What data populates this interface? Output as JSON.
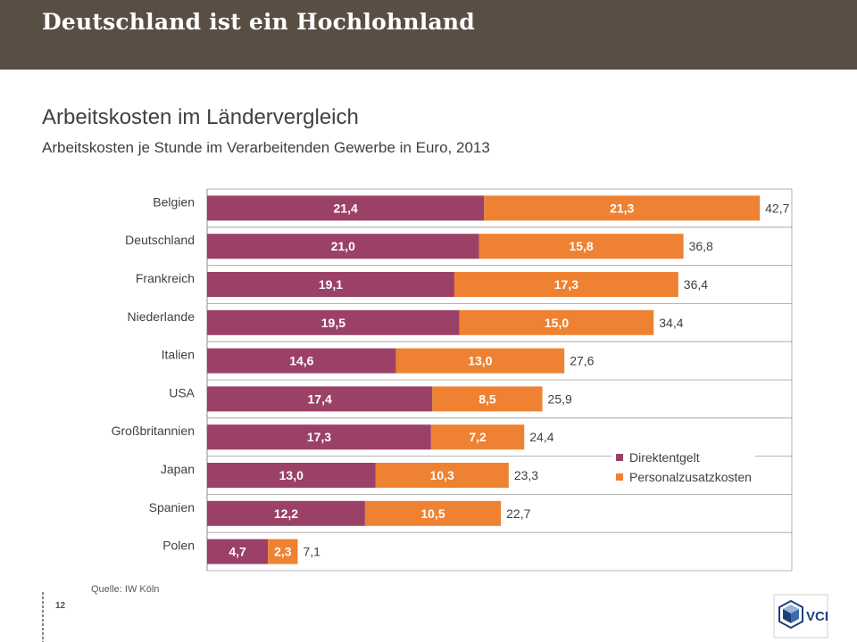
{
  "header": {
    "title": "Deutschland ist ein Hochlohnland"
  },
  "footer": {
    "source": "Quelle: IW Köln",
    "page_number": "12",
    "logo_text": "VCI"
  },
  "colors": {
    "header_bg": "#594e44",
    "direktentgelt": "#9b4168",
    "personalzusatzkosten": "#ee8232"
  },
  "chart_data": {
    "type": "bar",
    "orientation": "horizontal",
    "stacked": true,
    "title": "Arbeitskosten im Ländervergleich",
    "subtitle": "Arbeitskosten je Stunde im Verarbeitenden Gewerbe in Euro, 2013",
    "categories": [
      "Belgien",
      "Deutschland",
      "Frankreich",
      "Niederlande",
      "Italien",
      "USA",
      "Großbritannien",
      "Japan",
      "Spanien",
      "Polen"
    ],
    "series": [
      {
        "name": "Direktentgelt",
        "color": "#9b4168",
        "values": [
          21.4,
          21.0,
          19.1,
          19.5,
          14.6,
          17.4,
          17.3,
          13.0,
          12.2,
          4.7
        ],
        "labels": [
          "21,4",
          "21,0",
          "19,1",
          "19,5",
          "14,6",
          "17,4",
          "17,3",
          "13,0",
          "12,2",
          "4,7"
        ]
      },
      {
        "name": "Personalzusatzkosten",
        "color": "#ee8232",
        "values": [
          21.3,
          15.8,
          17.3,
          15.0,
          13.0,
          8.5,
          7.2,
          10.3,
          10.5,
          2.3
        ],
        "labels": [
          "21,3",
          "15,8",
          "17,3",
          "15,0",
          "13,0",
          "8,5",
          "7,2",
          "10,3",
          "10,5",
          "2,3"
        ]
      }
    ],
    "totals": [
      42.7,
      36.8,
      36.4,
      34.4,
      27.6,
      25.9,
      24.4,
      23.3,
      22.7,
      7.1
    ],
    "total_labels": [
      "42,7",
      "36,8",
      "36,4",
      "34,4",
      "27,6",
      "25,9",
      "24,4",
      "23,3",
      "22,7",
      "7,1"
    ],
    "xlim": [
      0,
      45
    ],
    "grid": true,
    "legend_position": "lower-right"
  }
}
